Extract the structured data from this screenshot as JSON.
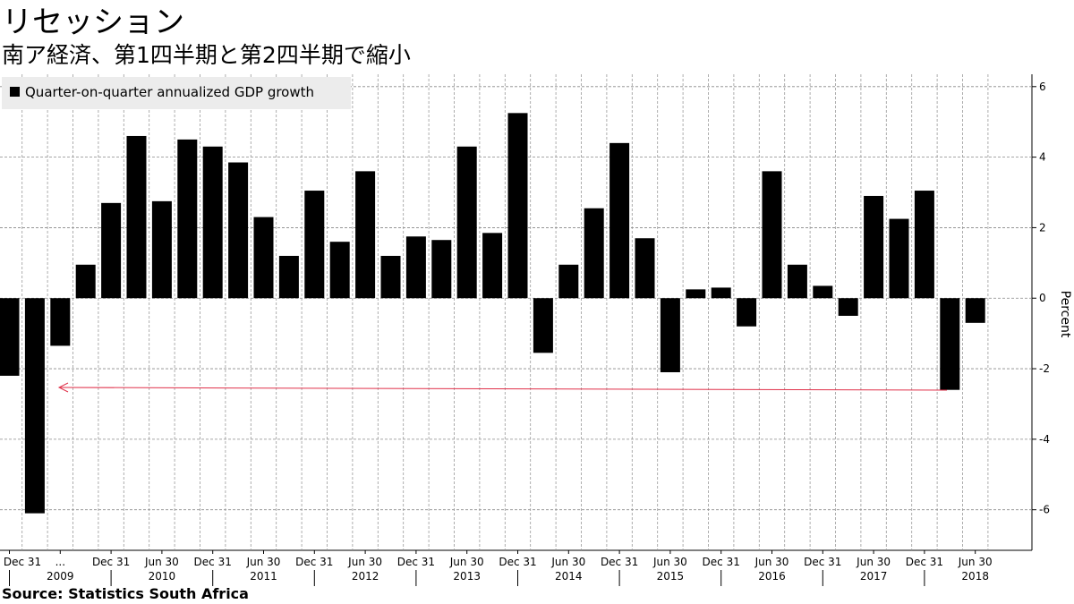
{
  "chart_data": {
    "type": "bar",
    "title": "リセッション",
    "subtitle": "南ア経済、第1四半期と第2四半期で縮小",
    "y_label": "Percent",
    "source": "Source: Statistics South Africa",
    "categories": [
      "Dec 31",
      null,
      "...",
      null,
      "Dec 31",
      null,
      "Jun 30",
      null,
      "Dec 31",
      null,
      "Jun 30",
      null,
      "Dec 31",
      null,
      "Jun 30",
      null,
      "Dec 31",
      null,
      "Jun 30",
      null,
      "Dec 31",
      null,
      "Jun 30",
      null,
      "Dec 31",
      null,
      "Jun 30",
      null,
      "Dec 31",
      null,
      "Jun 30",
      null,
      "Dec 31",
      null,
      "Jun 30",
      null,
      "Dec 31",
      null,
      "Jun 30"
    ],
    "years": [
      "2009",
      "2010",
      "2011",
      "2012",
      "2013",
      "2014",
      "2015",
      "2016",
      "2017",
      "2018"
    ],
    "series": [
      {
        "name": "Quarter-on-quarter annualized GDP growth",
        "color": "#000000",
        "values": [
          -2.2,
          -6.1,
          -1.35,
          0.95,
          2.7,
          4.6,
          2.75,
          4.5,
          4.3,
          3.85,
          2.3,
          1.2,
          3.05,
          1.6,
          3.6,
          1.2,
          1.75,
          1.65,
          4.3,
          1.85,
          5.25,
          -1.55,
          0.95,
          2.55,
          4.4,
          1.7,
          -2.1,
          0.25,
          0.3,
          -0.8,
          3.6,
          0.95,
          0.35,
          -0.5,
          2.9,
          2.25,
          3.05,
          -2.6,
          -0.7
        ]
      }
    ],
    "ylim": [
      -7.15,
      6.35
    ],
    "yticks": [
      -6,
      -4,
      -2,
      0,
      2,
      4,
      6
    ],
    "grid": true,
    "legend": "top-left"
  }
}
